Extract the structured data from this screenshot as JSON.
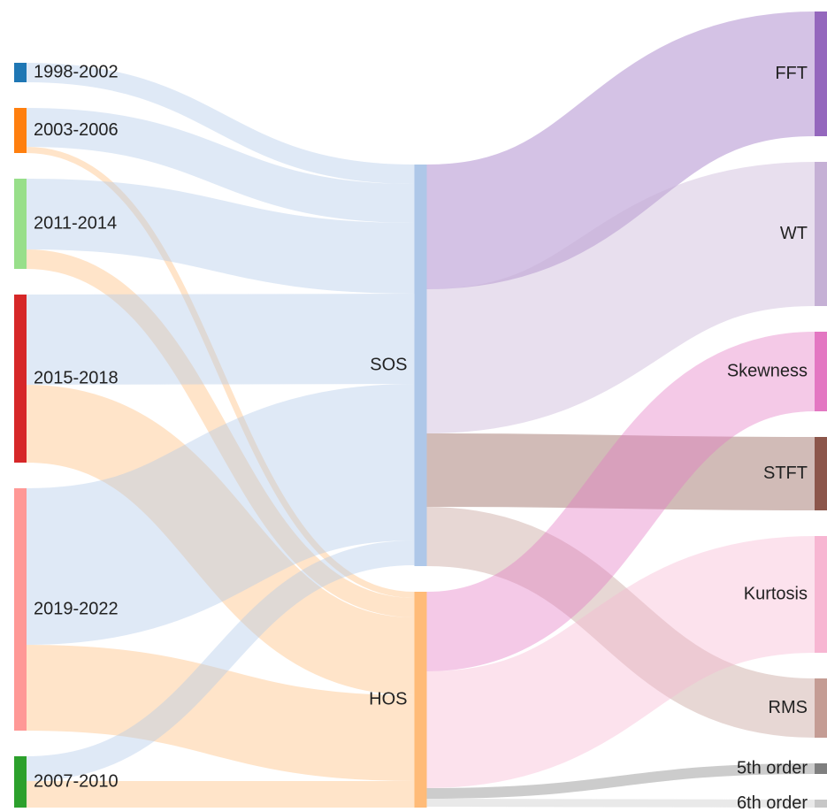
{
  "chart_data": {
    "type": "sankey",
    "nodes": [
      {
        "name": "1998-2002",
        "color": "#1f77b4"
      },
      {
        "name": "2003-2006",
        "color": "#ff7f0e"
      },
      {
        "name": "2011-2014",
        "color": "#98df8a"
      },
      {
        "name": "2015-2018",
        "color": "#d62728"
      },
      {
        "name": "2019-2022",
        "color": "#ff9896"
      },
      {
        "name": "2007-2010",
        "color": "#2ca02c"
      },
      {
        "name": "SOS",
        "color": "#aec7e8"
      },
      {
        "name": "HOS",
        "color": "#ffbb78"
      },
      {
        "name": "FFT",
        "color": "#9467bd"
      },
      {
        "name": "WT",
        "color": "#c5b0d5"
      },
      {
        "name": "Skewness",
        "color": "#e377c2"
      },
      {
        "name": "STFT",
        "color": "#8c564b"
      },
      {
        "name": "Kurtosis",
        "color": "#f7b6d2"
      },
      {
        "name": "RMS",
        "color": "#c49c94"
      },
      {
        "name": "5th order",
        "color": "#7f7f7f"
      },
      {
        "name": "6th order",
        "color": "#c7c7c7"
      }
    ],
    "links": [
      {
        "source": 0,
        "target": 6,
        "value": 22
      },
      {
        "source": 1,
        "target": 6,
        "value": 44
      },
      {
        "source": 1,
        "target": 7,
        "value": 7
      },
      {
        "source": 2,
        "target": 6,
        "value": 80
      },
      {
        "source": 2,
        "target": 7,
        "value": 22
      },
      {
        "source": 3,
        "target": 6,
        "value": 102
      },
      {
        "source": 3,
        "target": 7,
        "value": 88
      },
      {
        "source": 4,
        "target": 6,
        "value": 177
      },
      {
        "source": 4,
        "target": 7,
        "value": 97
      },
      {
        "source": 5,
        "target": 6,
        "value": 28
      },
      {
        "source": 5,
        "target": 7,
        "value": 30
      },
      {
        "source": 6,
        "target": 8,
        "value": 141
      },
      {
        "source": 6,
        "target": 9,
        "value": 163
      },
      {
        "source": 6,
        "target": 11,
        "value": 83
      },
      {
        "source": 6,
        "target": 13,
        "value": 67
      },
      {
        "source": 7,
        "target": 10,
        "value": 90
      },
      {
        "source": 7,
        "target": 12,
        "value": 132
      },
      {
        "source": 7,
        "target": 14,
        "value": 12
      },
      {
        "source": 7,
        "target": 15,
        "value": 9
      }
    ]
  }
}
